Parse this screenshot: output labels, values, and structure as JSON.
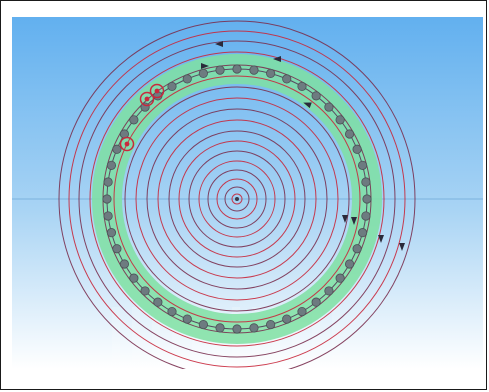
{
  "scene": {
    "background_top": "#62b0ef",
    "background_bottom": "#ffffff",
    "ring_band_color": "#7fe0a2",
    "field_line_color": "#c8283c",
    "node_color": "#6d7b80",
    "current_dot_color": "#c8283c",
    "arrow_color": "#2a2a3a"
  }
}
